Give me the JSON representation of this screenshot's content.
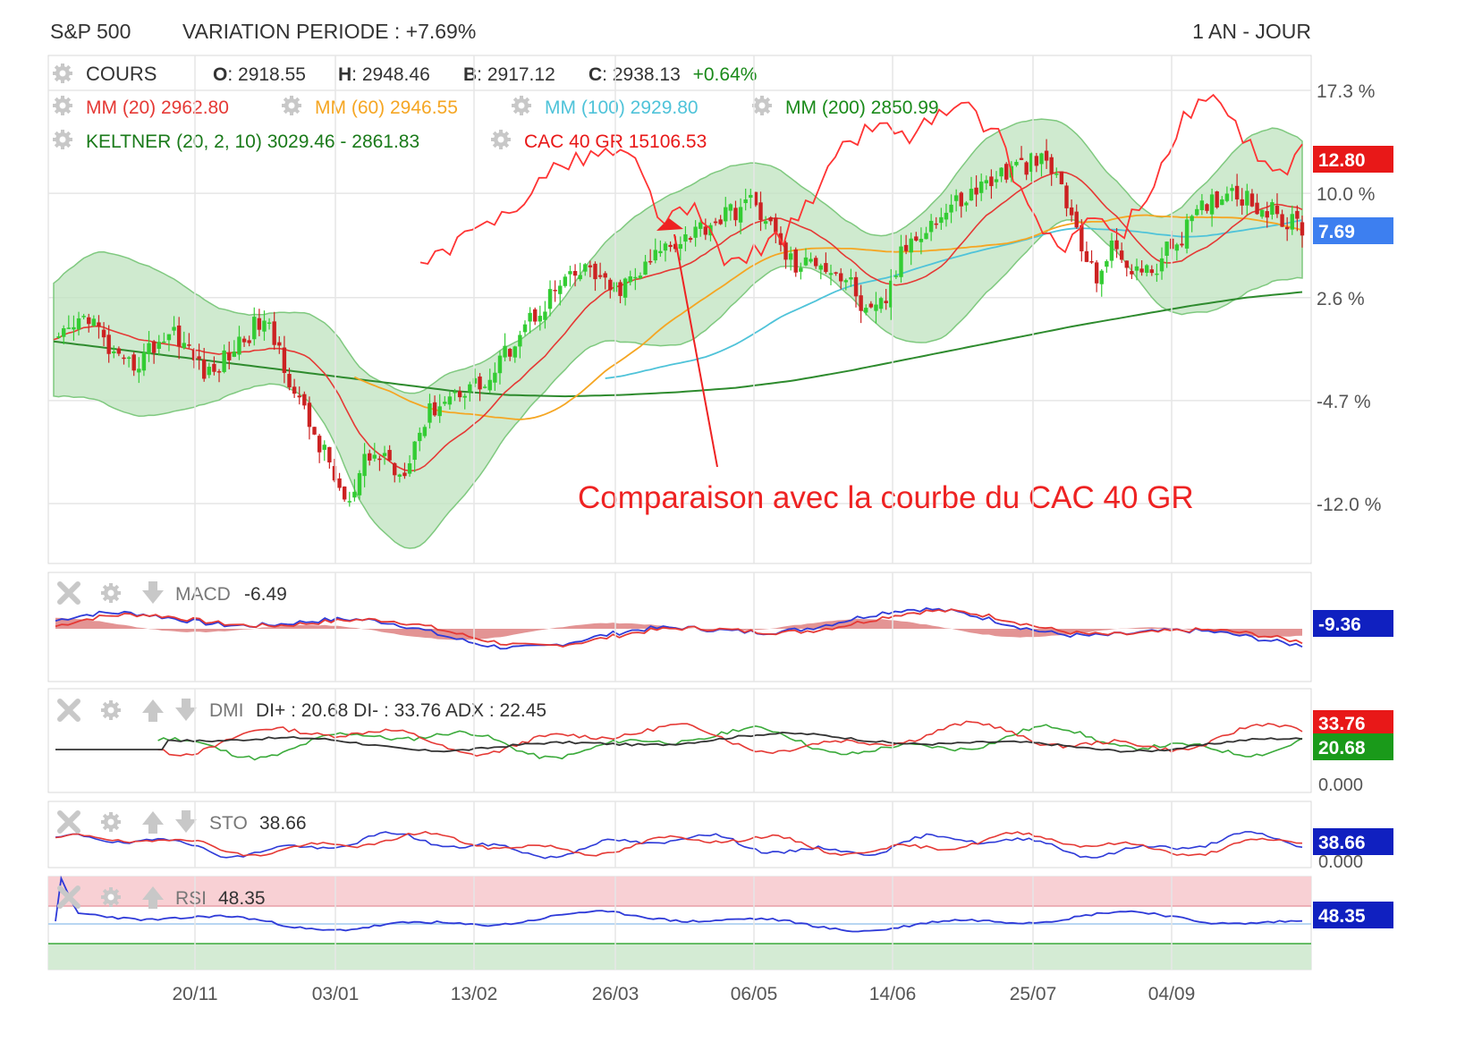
{
  "header": {
    "symbol": "S&P 500",
    "variation": "VARIATION PERIODE : +7.69%",
    "period": "1 AN - JOUR"
  },
  "main": {
    "legend": {
      "cours_label": "COURS",
      "ohlc": [
        {
          "k": "O",
          "v": ": 2918.55"
        },
        {
          "k": "H",
          "v": ": 2948.46"
        },
        {
          "k": "B",
          "v": ": 2917.12"
        },
        {
          "k": "C",
          "v": ": 2938.13"
        }
      ],
      "change": "+0.64%",
      "mm20": "MM (20)  2962.80",
      "mm60": "MM (60)  2946.55",
      "mm100": "MM (100)  2929.80",
      "mm200": "MM (200)  2850.99",
      "keltner": "KELTNER (20, 2, 10)  3029.46 - 2861.83",
      "cac": "CAC 40 GR  15106.53"
    },
    "annotation": "Comparaison avec la courbe du CAC 40 GR"
  },
  "panels": {
    "macd": {
      "label": "MACD",
      "value": "-6.49",
      "badge": "-9.36"
    },
    "dmi": {
      "label": "DMI",
      "value": "DI+ : 20.68 DI- : 33.76 ADX : 22.45",
      "badge_red": "33.76",
      "badge_green": "20.68",
      "scale": "0.000"
    },
    "sto": {
      "label": "STO",
      "value": "38.66",
      "badge": "38.66",
      "scale": "0.000"
    },
    "rsi": {
      "label": "RSI",
      "value": "48.35",
      "badge": "48.35"
    }
  },
  "colors": {
    "up": "#33cc33",
    "down": "#cc2222",
    "mm20": "#e53935",
    "mm60": "#f5a623",
    "mm100": "#4fc3d9",
    "mm200": "#2e8b2e",
    "keltner_fill": "#bfe3bf",
    "cac": "#ff3333",
    "badge_red": "#e81818",
    "badge_blue": "#3d7ff0",
    "badge_navy": "#1020c0",
    "badge_green": "#1a9a1a"
  },
  "chart_data": {
    "type": "line",
    "title": "S&P 500",
    "y_ticks": [
      "17.3 %",
      "10.0 %",
      "2.6 %",
      "-4.7 %",
      "-12.0 %"
    ],
    "x_ticks": [
      "20/11",
      "03/01",
      "13/02",
      "26/03",
      "06/05",
      "14/06",
      "25/07",
      "04/09"
    ],
    "badges": {
      "cac": "12.80 %",
      "sp500": "7.69 %"
    },
    "series": [
      {
        "name": "COURS",
        "values": [
          -1.0,
          0.2,
          1.5,
          -0.8,
          -2.5,
          -1.8,
          -0.5,
          0.3,
          -1.6,
          -3.0,
          -1.5,
          -0.2,
          1.0,
          -1.0,
          -4.5,
          -7.0,
          -9.5,
          -12.5,
          -9.0,
          -8.5,
          -10.0,
          -7.0,
          -5.0,
          -4.3,
          -3.5,
          -3.6,
          -1.5,
          0.5,
          1.8,
          3.2,
          4.0,
          4.7,
          3.0,
          3.5,
          4.5,
          6.0,
          6.8,
          7.4,
          8.0,
          8.6,
          9.4,
          8.5,
          6.0,
          4.5,
          5.5,
          4.5,
          3.5,
          1.0,
          2.5,
          6.0,
          7.5,
          8.2,
          9.3,
          10.0,
          11.0,
          11.5,
          12.0,
          12.2,
          11.0,
          7.0,
          4.0,
          6.0,
          5.0,
          4.2,
          5.5,
          7.0,
          8.5,
          9.7,
          10.4,
          9.5,
          8.8,
          8.0,
          7.69
        ]
      },
      {
        "name": "MM (200)",
        "values": [
          -0.5,
          -1.0,
          -1.5,
          -2.0,
          -2.5,
          -3.0,
          -3.5,
          -4.0,
          -4.3,
          -4.4,
          -4.3,
          -4.1,
          -3.8,
          -3.3,
          -2.6,
          -1.8,
          -1.0,
          -0.2,
          0.6,
          1.3,
          2.0,
          2.6,
          3.0
        ]
      },
      {
        "name": "CAC 40 GR",
        "values": [
          5.0,
          6.0,
          7.5,
          9.0,
          11.0,
          12.3,
          13.0,
          12.5,
          8.0,
          9.0,
          5.0,
          6.0,
          7.0,
          10.0,
          13.5,
          15.0,
          14.0,
          15.5,
          16.0,
          14.0,
          9.0,
          6.0,
          8.0,
          7.0,
          10.0,
          15.0,
          17.0,
          14.0,
          11.0,
          12.8
        ]
      }
    ]
  }
}
